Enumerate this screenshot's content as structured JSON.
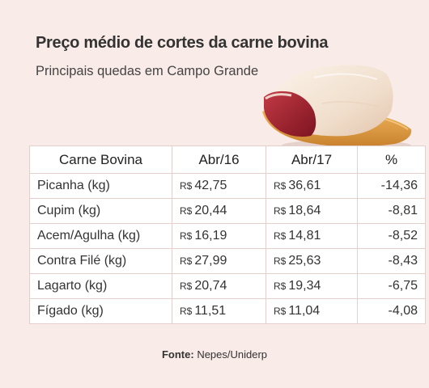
{
  "header": {
    "title": "Preço médio de cortes da carne bovina",
    "subtitle": "Principais quedas em Campo Grande"
  },
  "table": {
    "headers": [
      "Carne Bovina",
      "Abr/16",
      "Abr/17",
      "%"
    ],
    "currency": "R$",
    "rows": [
      {
        "name": "Picanha (kg)",
        "abr16": "42,75",
        "abr17": "36,61",
        "pct": "-14,36"
      },
      {
        "name": "Cupim (kg)",
        "abr16": "20,44",
        "abr17": "18,64",
        "pct": "-8,81"
      },
      {
        "name": "Acem/Agulha (kg)",
        "abr16": "16,19",
        "abr17": "14,81",
        "pct": "-8,52"
      },
      {
        "name": "Contra Filé (kg)",
        "abr16": "27,99",
        "abr17": "25,63",
        "pct": "-8,43"
      },
      {
        "name": "Lagarto (kg)",
        "abr16": "20,74",
        "abr17": "19,34",
        "pct": "-6,75"
      },
      {
        "name": "Fígado (kg)",
        "abr16": "11,51",
        "abr17": "11,04",
        "pct": "-4,08"
      }
    ]
  },
  "source": {
    "label": "Fonte:",
    "text": "Nepes/Uniderp"
  },
  "colors": {
    "background": "#f9ebe7",
    "table_border": "#e3cfcb",
    "meat_red": "#9e1f2c",
    "fat_cap": "#f4e6d8",
    "board": "#e3a24a"
  },
  "image": {
    "icon": "beef-cut-on-cutting-board-icon"
  }
}
